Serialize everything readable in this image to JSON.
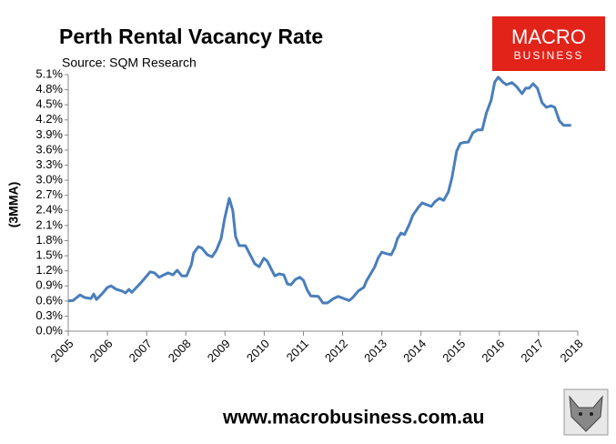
{
  "chart_data": {
    "type": "line",
    "title": "Perth Rental Vacancy Rate",
    "subtitle": "Source: SQM Research",
    "y_label": "(3MMA)",
    "logo": [
      "MACRO",
      "BUSINESS"
    ],
    "footer": "www.macrobusiness.com.au",
    "xlim": [
      2005,
      2018
    ],
    "xticks": [
      2005,
      2006,
      2007,
      2008,
      2009,
      2010,
      2011,
      2012,
      2013,
      2014,
      2015,
      2016,
      2017,
      2018
    ],
    "ylim": [
      0,
      5.1
    ],
    "yticks": [
      {
        "value": 0,
        "label": "0.0%"
      },
      {
        "value": 0.3,
        "label": "0.3%"
      },
      {
        "value": 0.6,
        "label": "0.6%"
      },
      {
        "value": 0.9,
        "label": "0.9%"
      },
      {
        "value": 1.2,
        "label": "1.2%"
      },
      {
        "value": 1.5,
        "label": "1.5%"
      },
      {
        "value": 1.8,
        "label": "1.8%"
      },
      {
        "value": 2.1,
        "label": "2.1%"
      },
      {
        "value": 2.4,
        "label": "2.4%"
      },
      {
        "value": 2.7,
        "label": "2.7%"
      },
      {
        "value": 3.0,
        "label": "3.0%"
      },
      {
        "value": 3.3,
        "label": "3.3%"
      },
      {
        "value": 3.6,
        "label": "3.6%"
      },
      {
        "value": 3.9,
        "label": "3.9%"
      },
      {
        "value": 4.2,
        "label": "4.2%"
      },
      {
        "value": 4.5,
        "label": "4.5%"
      },
      {
        "value": 4.8,
        "label": "4.8%"
      },
      {
        "value": 5.1,
        "label": "5.1%"
      }
    ],
    "grid": false,
    "color": "#4a7ebb",
    "x": [
      2005.0,
      2005.12,
      2005.3,
      2005.42,
      2005.58,
      2005.65,
      2005.72,
      2005.86,
      2006.0,
      2006.09,
      2006.23,
      2006.37,
      2006.46,
      2006.55,
      2006.62,
      2006.74,
      2006.83,
      2006.93,
      2007.09,
      2007.2,
      2007.32,
      2007.44,
      2007.55,
      2007.67,
      2007.78,
      2007.9,
      2008.02,
      2008.14,
      2008.2,
      2008.32,
      2008.41,
      2008.55,
      2008.67,
      2008.78,
      2008.9,
      2008.99,
      2009.11,
      2009.2,
      2009.27,
      2009.36,
      2009.52,
      2009.64,
      2009.76,
      2009.87,
      2009.99,
      2010.08,
      2010.17,
      2010.27,
      2010.38,
      2010.5,
      2010.59,
      2010.68,
      2010.8,
      2010.91,
      2011.0,
      2011.1,
      2011.19,
      2011.38,
      2011.5,
      2011.61,
      2011.77,
      2011.89,
      2012.03,
      2012.17,
      2012.26,
      2012.4,
      2012.54,
      2012.61,
      2012.73,
      2012.82,
      2012.91,
      2013.0,
      2013.12,
      2013.24,
      2013.33,
      2013.4,
      2013.49,
      2013.58,
      2013.7,
      2013.79,
      2013.93,
      2014.03,
      2014.16,
      2014.26,
      2014.35,
      2014.47,
      2014.58,
      2014.7,
      2014.79,
      2014.91,
      2015.0,
      2015.09,
      2015.21,
      2015.32,
      2015.44,
      2015.56,
      2015.67,
      2015.79,
      2015.88,
      2015.97,
      2016.09,
      2016.18,
      2016.32,
      2016.44,
      2016.58,
      2016.67,
      2016.76,
      2016.86,
      2016.97,
      2017.09,
      2017.2,
      2017.32,
      2017.41,
      2017.53,
      2017.64,
      2017.83
    ],
    "values": [
      0.6,
      0.61,
      0.72,
      0.67,
      0.65,
      0.74,
      0.63,
      0.74,
      0.87,
      0.9,
      0.83,
      0.8,
      0.76,
      0.83,
      0.77,
      0.87,
      0.94,
      1.03,
      1.18,
      1.16,
      1.07,
      1.12,
      1.16,
      1.12,
      1.21,
      1.1,
      1.1,
      1.32,
      1.55,
      1.68,
      1.65,
      1.52,
      1.48,
      1.61,
      1.84,
      2.24,
      2.64,
      2.39,
      1.88,
      1.7,
      1.7,
      1.52,
      1.34,
      1.28,
      1.45,
      1.39,
      1.25,
      1.1,
      1.14,
      1.12,
      0.94,
      0.92,
      1.03,
      1.07,
      1.01,
      0.81,
      0.7,
      0.69,
      0.56,
      0.56,
      0.65,
      0.69,
      0.65,
      0.61,
      0.67,
      0.8,
      0.87,
      1.0,
      1.16,
      1.28,
      1.46,
      1.57,
      1.54,
      1.52,
      1.66,
      1.84,
      1.95,
      1.92,
      2.12,
      2.3,
      2.46,
      2.55,
      2.51,
      2.48,
      2.57,
      2.64,
      2.6,
      2.77,
      3.05,
      3.58,
      3.73,
      3.75,
      3.76,
      3.94,
      4.0,
      4.0,
      4.34,
      4.59,
      4.95,
      5.05,
      4.95,
      4.9,
      4.94,
      4.86,
      4.72,
      4.83,
      4.83,
      4.92,
      4.83,
      4.54,
      4.45,
      4.48,
      4.45,
      4.18,
      4.09,
      4.09
    ]
  }
}
